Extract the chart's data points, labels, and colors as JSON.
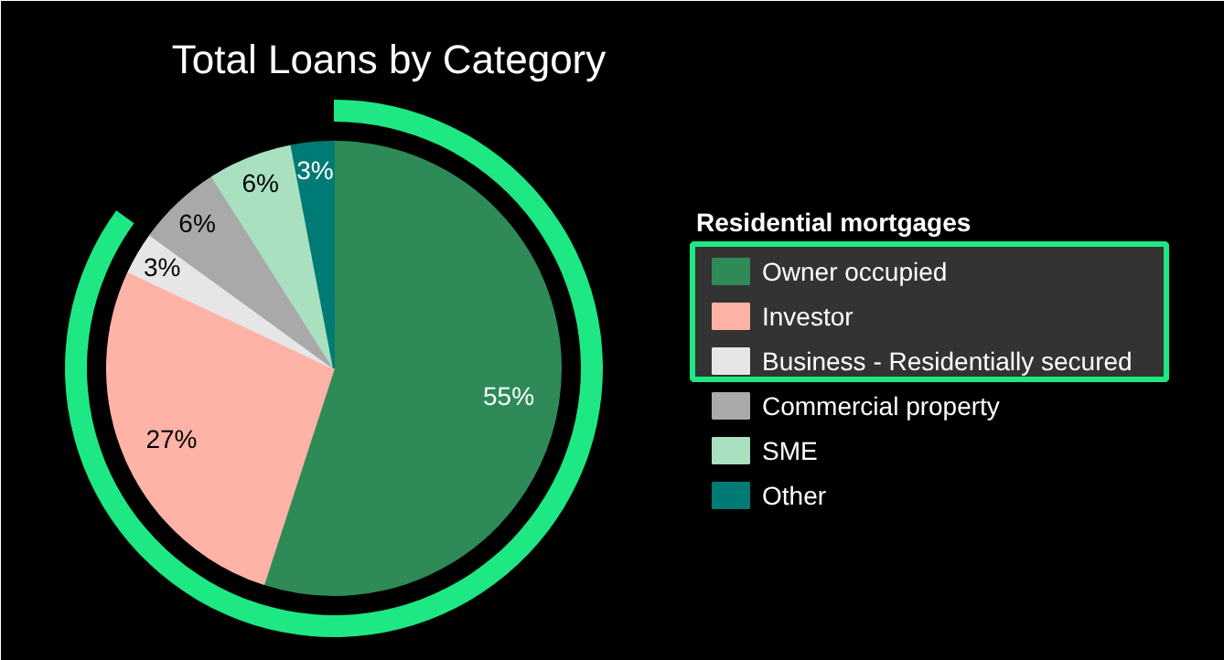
{
  "chart_data": {
    "type": "pie",
    "title": "Total Loans by Category",
    "legend_title": "Residential mortgages",
    "legend": "right",
    "categories": [
      "Owner occupied",
      "Investor",
      "Business - Residentially secured",
      "Commercial property",
      "SME",
      "Other"
    ],
    "values": [
      55,
      27,
      3,
      6,
      6,
      3
    ],
    "colors": [
      "#2e8b57",
      "#ffb3a7",
      "#e6e6e6",
      "#a9a9a9",
      "#a8e0c0",
      "#007a74"
    ],
    "value_labels": [
      "55%",
      "27%",
      "3%",
      "6%",
      "6%",
      "3%"
    ]
  }
}
